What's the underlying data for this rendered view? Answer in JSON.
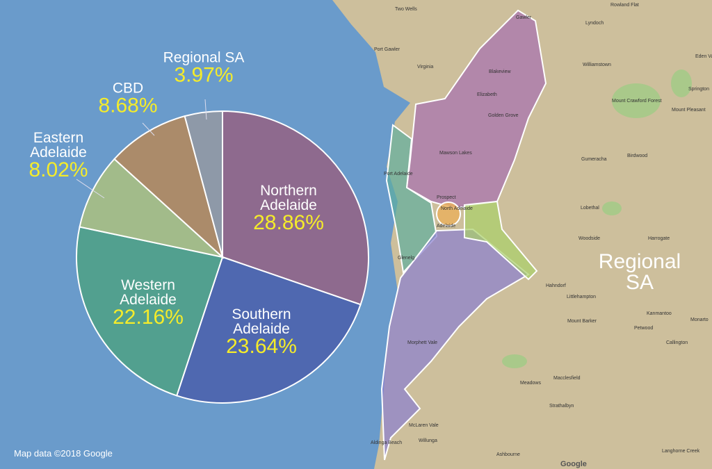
{
  "chart_data": {
    "type": "pie",
    "categories": [
      "Northern Adelaide",
      "Southern Adelaide",
      "Western Adelaide",
      "Eastern Adelaide",
      "CBD",
      "Regional SA"
    ],
    "values": [
      28.86,
      23.64,
      22.16,
      8.02,
      8.68,
      3.97
    ],
    "value_labels": [
      "28.86%",
      "23.64%",
      "22.16%",
      "8.02%",
      "8.68%",
      "3.97%"
    ],
    "colors": [
      "#8e6a8e",
      "#4f68b0",
      "#52a08f",
      "#a2bb8a",
      "#ab8b6a",
      "#8e99a8"
    ]
  },
  "map": {
    "region_label": "Regional SA",
    "attribution": "Map data ©2018 Google",
    "logo": "Google",
    "labels": [
      "Two Wells",
      "Gawler",
      "Rowland Flat",
      "Lyndoch",
      "Port Gawler",
      "Virginia",
      "Williamstown",
      "Eden Valley",
      "Blakeview",
      "Elizabeth",
      "Springton",
      "Mount Crawford Forest",
      "Mount Pleasant",
      "Golden Grove",
      "Mawson Lakes",
      "Gumeracha",
      "Birdwood",
      "Port Adelaide",
      "Prospect",
      "North Adelaide",
      "Adelaide",
      "Lobethal",
      "Woodside",
      "Harrogate",
      "Glenelg",
      "Hahndorf",
      "Littlehampton",
      "Kanmantoo",
      "Monarto",
      "Mount Barker",
      "Petwood",
      "Callington",
      "Morphett Vale",
      "Meadows",
      "Macclesfield",
      "McLaren Vale",
      "Strathalbyn",
      "Aldinga Beach",
      "Willunga",
      "Ashbourne",
      "Langhorne Creek"
    ]
  }
}
